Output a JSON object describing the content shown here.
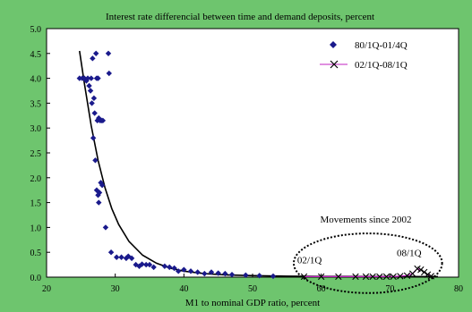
{
  "chart_data": {
    "type": "scatter",
    "title": "Interest rate differencial between time and demand deposits, percent",
    "xlabel": "M1 to nominal GDP ratio, percent",
    "ylabel": "",
    "xlim": [
      20,
      80
    ],
    "ylim": [
      0,
      5
    ],
    "x_ticks": [
      "20",
      "30",
      "40",
      "50",
      "60",
      "70",
      "80"
    ],
    "y_ticks": [
      "0.0",
      "0.5",
      "1.0",
      "1.5",
      "2.0",
      "2.5",
      "3.0",
      "3.5",
      "4.0",
      "4.5",
      "5.0"
    ],
    "grid": false,
    "legend_position": "top-right",
    "series": [
      {
        "name": "80/1Q-01/4Q",
        "marker": "diamond",
        "color": "#1a1a8c",
        "points": [
          [
            24.8,
            4.0
          ],
          [
            25.2,
            4.0
          ],
          [
            25.5,
            4.0
          ],
          [
            25.8,
            3.95
          ],
          [
            26.0,
            4.0
          ],
          [
            26.2,
            3.85
          ],
          [
            26.4,
            3.75
          ],
          [
            26.5,
            4.0
          ],
          [
            26.6,
            3.5
          ],
          [
            26.7,
            4.4
          ],
          [
            26.9,
            3.6
          ],
          [
            27.0,
            3.3
          ],
          [
            27.2,
            4.5
          ],
          [
            27.3,
            4.0
          ],
          [
            27.4,
            3.15
          ],
          [
            27.5,
            4.0
          ],
          [
            27.6,
            3.2
          ],
          [
            27.8,
            3.15
          ],
          [
            28.0,
            3.15
          ],
          [
            28.2,
            3.15
          ],
          [
            26.8,
            2.8
          ],
          [
            27.1,
            2.35
          ],
          [
            27.3,
            1.75
          ],
          [
            27.5,
            1.65
          ],
          [
            27.7,
            1.7
          ],
          [
            27.9,
            1.9
          ],
          [
            28.1,
            1.85
          ],
          [
            27.6,
            1.5
          ],
          [
            28.6,
            1.0
          ],
          [
            29.0,
            4.5
          ],
          [
            29.1,
            4.1
          ],
          [
            29.4,
            0.5
          ],
          [
            30.2,
            0.4
          ],
          [
            30.9,
            0.4
          ],
          [
            31.6,
            0.38
          ],
          [
            31.9,
            0.42
          ],
          [
            32.4,
            0.38
          ],
          [
            33.0,
            0.25
          ],
          [
            33.5,
            0.22
          ],
          [
            33.9,
            0.26
          ],
          [
            34.5,
            0.25
          ],
          [
            35.0,
            0.25
          ],
          [
            35.6,
            0.2
          ],
          [
            37.2,
            0.22
          ],
          [
            37.9,
            0.2
          ],
          [
            38.6,
            0.18
          ],
          [
            39.2,
            0.12
          ],
          [
            40.0,
            0.15
          ],
          [
            41.0,
            0.12
          ],
          [
            42.0,
            0.1
          ],
          [
            43.0,
            0.07
          ],
          [
            44.0,
            0.1
          ],
          [
            45.0,
            0.08
          ],
          [
            46.0,
            0.07
          ],
          [
            47.0,
            0.05
          ],
          [
            49.0,
            0.04
          ],
          [
            51.0,
            0.03
          ],
          [
            53.0,
            0.02
          ]
        ]
      },
      {
        "name": "02/1Q-08/1Q",
        "marker": "x",
        "color": "#c020c0",
        "points": [
          [
            57.5,
            0.01
          ],
          [
            60.0,
            0.01
          ],
          [
            62.5,
            0.01
          ],
          [
            65.0,
            0.01
          ],
          [
            66.5,
            0.01
          ],
          [
            67.5,
            0.01
          ],
          [
            68.5,
            0.01
          ],
          [
            69.5,
            0.01
          ],
          [
            70.5,
            0.01
          ],
          [
            71.5,
            0.02
          ],
          [
            72.5,
            0.03
          ],
          [
            73.3,
            0.07
          ],
          [
            74.0,
            0.17
          ],
          [
            74.5,
            0.15
          ],
          [
            75.0,
            0.1
          ],
          [
            75.5,
            0.05
          ],
          [
            76.0,
            0.02
          ]
        ]
      }
    ],
    "trend_curve": {
      "color": "#000000",
      "points": [
        [
          24.8,
          4.55
        ],
        [
          25.5,
          3.9
        ],
        [
          26.5,
          3.05
        ],
        [
          27.5,
          2.35
        ],
        [
          28.5,
          1.8
        ],
        [
          29.5,
          1.38
        ],
        [
          30.5,
          1.06
        ],
        [
          32.0,
          0.72
        ],
        [
          34.0,
          0.44
        ],
        [
          36.0,
          0.28
        ],
        [
          38.0,
          0.18
        ],
        [
          40.0,
          0.12
        ],
        [
          43.0,
          0.07
        ],
        [
          46.0,
          0.045
        ],
        [
          50.0,
          0.03
        ],
        [
          55.0,
          0.02
        ],
        [
          60.0,
          0.015
        ],
        [
          70.0,
          0.012
        ],
        [
          77.0,
          0.01
        ]
      ]
    },
    "annotations": [
      {
        "text": "Movements since 2002",
        "x": 66.5,
        "y": 1.1
      },
      {
        "text": "02/1Q",
        "x": 58.3,
        "y": 0.28
      },
      {
        "text": "08/1Q",
        "x": 72.8,
        "y": 0.42
      }
    ],
    "highlight_ellipse": {
      "cx": 66.8,
      "cy": 0.28,
      "rx": 10.8,
      "ry": 0.6
    }
  }
}
